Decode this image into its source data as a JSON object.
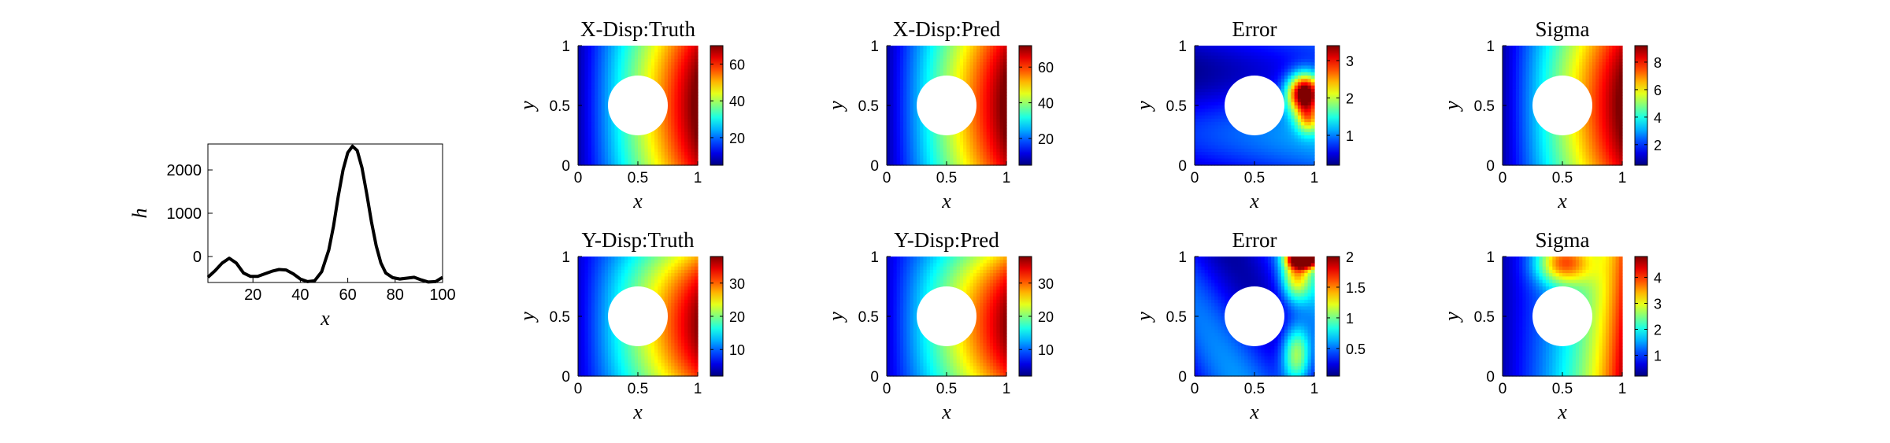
{
  "figure_title": "",
  "chart_data": [
    {
      "id": "h-curve",
      "type": "line",
      "title": "",
      "xlabel": "x",
      "ylabel": "h",
      "xlim": [
        1,
        100
      ],
      "ylim": [
        -600,
        2600
      ],
      "xticks": [
        20,
        40,
        60,
        80,
        100
      ],
      "yticks": [
        0,
        1000,
        2000
      ],
      "grid": false,
      "series": [
        {
          "color": "#000000",
          "x": [
            1,
            4,
            7,
            10,
            13,
            16,
            19,
            22,
            25,
            28,
            31,
            34,
            37,
            40,
            43,
            46,
            49,
            52,
            54,
            56,
            58,
            60,
            62,
            64,
            66,
            68,
            70,
            72,
            74,
            76,
            79,
            82,
            85,
            88,
            91,
            94,
            97,
            100
          ],
          "y": [
            -480,
            -330,
            -150,
            -40,
            -150,
            -380,
            -460,
            -460,
            -400,
            -340,
            -300,
            -310,
            -400,
            -520,
            -580,
            -560,
            -350,
            150,
            700,
            1400,
            2000,
            2400,
            2550,
            2450,
            2050,
            1450,
            800,
            250,
            -150,
            -380,
            -490,
            -520,
            -500,
            -480,
            -540,
            -590,
            -580,
            -480
          ]
        }
      ]
    },
    {
      "id": "x-disp-truth",
      "type": "heatmap",
      "title": "X-Disp:Truth",
      "xlabel": "x",
      "ylabel": "y",
      "xlim": [
        0,
        1
      ],
      "ylim": [
        0,
        1
      ],
      "xticks": [
        "0",
        "0.5",
        "1"
      ],
      "yticks": [
        "0",
        "0.5",
        "1"
      ],
      "hole": {
        "center": [
          0.5,
          0.5
        ],
        "radius": 0.25
      },
      "field": "x-linear",
      "colormap": "jet",
      "clim": [
        5,
        70
      ],
      "colorbar_ticks": [
        20,
        40,
        60
      ]
    },
    {
      "id": "x-disp-pred",
      "type": "heatmap",
      "title": "X-Disp:Pred",
      "xlabel": "x",
      "ylabel": "y",
      "xlim": [
        0,
        1
      ],
      "ylim": [
        0,
        1
      ],
      "xticks": [
        "0",
        "0.5",
        "1"
      ],
      "yticks": [
        "0",
        "0.5",
        "1"
      ],
      "hole": {
        "center": [
          0.5,
          0.5
        ],
        "radius": 0.25
      },
      "field": "x-linear",
      "colormap": "jet",
      "clim": [
        5,
        72
      ],
      "colorbar_ticks": [
        20,
        40,
        60
      ]
    },
    {
      "id": "x-disp-error",
      "type": "heatmap",
      "title": "Error",
      "xlabel": "x",
      "ylabel": "y",
      "xlim": [
        0,
        1
      ],
      "ylim": [
        0,
        1
      ],
      "xticks": [
        "0",
        "0.5",
        "1"
      ],
      "yticks": [
        "0",
        "0.5",
        "1"
      ],
      "hole": {
        "center": [
          0.5,
          0.5
        ],
        "radius": 0.25
      },
      "field": "x-error",
      "colormap": "jet",
      "clim": [
        0.2,
        3.4
      ],
      "colorbar_ticks": [
        1,
        2,
        3
      ]
    },
    {
      "id": "x-disp-sigma",
      "type": "heatmap",
      "title": "Sigma",
      "xlabel": "x",
      "ylabel": "y",
      "xlim": [
        0,
        1
      ],
      "ylim": [
        0,
        1
      ],
      "xticks": [
        "0",
        "0.5",
        "1"
      ],
      "yticks": [
        "0",
        "0.5",
        "1"
      ],
      "hole": {
        "center": [
          0.5,
          0.5
        ],
        "radius": 0.25
      },
      "field": "x-linear",
      "colormap": "jet",
      "clim": [
        0.5,
        9.2
      ],
      "colorbar_ticks": [
        2,
        4,
        6,
        8
      ]
    },
    {
      "id": "y-disp-truth",
      "type": "heatmap",
      "title": "Y-Disp:Truth",
      "xlabel": "x",
      "ylabel": "y",
      "xlim": [
        0,
        1
      ],
      "ylim": [
        0,
        1
      ],
      "xticks": [
        "0",
        "0.5",
        "1"
      ],
      "yticks": [
        "0",
        "0.5",
        "1"
      ],
      "hole": {
        "center": [
          0.5,
          0.5
        ],
        "radius": 0.25
      },
      "field": "y-disp",
      "colormap": "jet",
      "clim": [
        2,
        38
      ],
      "colorbar_ticks": [
        10,
        20,
        30
      ]
    },
    {
      "id": "y-disp-pred",
      "type": "heatmap",
      "title": "Y-Disp:Pred",
      "xlabel": "x",
      "ylabel": "y",
      "xlim": [
        0,
        1
      ],
      "ylim": [
        0,
        1
      ],
      "xticks": [
        "0",
        "0.5",
        "1"
      ],
      "yticks": [
        "0",
        "0.5",
        "1"
      ],
      "hole": {
        "center": [
          0.5,
          0.5
        ],
        "radius": 0.25
      },
      "field": "y-disp",
      "colormap": "jet",
      "clim": [
        2,
        38
      ],
      "colorbar_ticks": [
        10,
        20,
        30
      ]
    },
    {
      "id": "y-disp-error",
      "type": "heatmap",
      "title": "Error",
      "xlabel": "x",
      "ylabel": "y",
      "xlim": [
        0,
        1
      ],
      "ylim": [
        0,
        1
      ],
      "xticks": [
        "0",
        "0.5",
        "1"
      ],
      "yticks": [
        "0",
        "0.5",
        "1"
      ],
      "hole": {
        "center": [
          0.5,
          0.5
        ],
        "radius": 0.25
      },
      "field": "y-error",
      "colormap": "jet",
      "clim": [
        0.05,
        2.0
      ],
      "colorbar_ticks": [
        0.5,
        1,
        1.5,
        2
      ]
    },
    {
      "id": "y-disp-sigma",
      "type": "heatmap",
      "title": "Sigma",
      "xlabel": "x",
      "ylabel": "y",
      "xlim": [
        0,
        1
      ],
      "ylim": [
        0,
        1
      ],
      "xticks": [
        "0",
        "0.5",
        "1"
      ],
      "yticks": [
        "0",
        "0.5",
        "1"
      ],
      "hole": {
        "center": [
          0.5,
          0.5
        ],
        "radius": 0.25
      },
      "field": "y-sigma",
      "colormap": "jet",
      "clim": [
        0.2,
        4.8
      ],
      "colorbar_ticks": [
        1,
        2,
        3,
        4
      ]
    }
  ]
}
